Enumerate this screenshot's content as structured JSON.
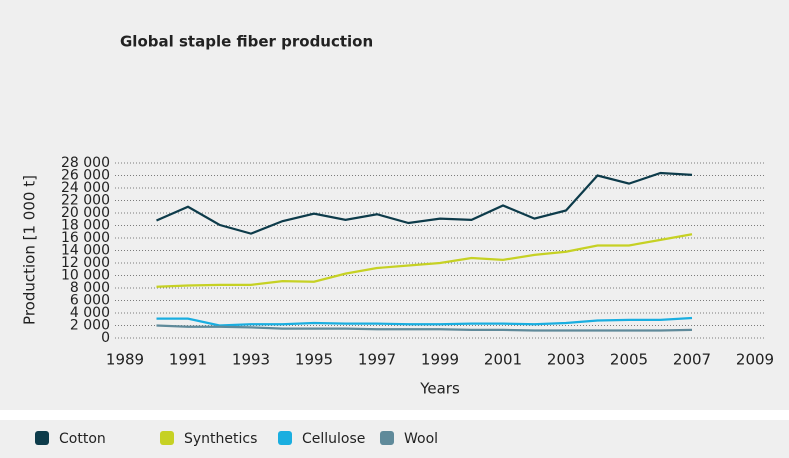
{
  "chart_data": {
    "type": "line",
    "title": "Global staple fiber production",
    "x_label": "Years",
    "y_label": "Production [1 000 t]",
    "x": [
      1990,
      1991,
      1992,
      1993,
      1994,
      1995,
      1996,
      1997,
      1998,
      1999,
      2000,
      2001,
      2002,
      2003,
      2004,
      2005,
      2006,
      2007
    ],
    "series": [
      {
        "name": "Cotton",
        "color": "#0d3b4a",
        "values": [
          18800,
          21000,
          18100,
          16700,
          18700,
          19900,
          18900,
          19800,
          18400,
          19100,
          18900,
          21200,
          19100,
          20400,
          26000,
          24700,
          26400,
          26100
        ]
      },
      {
        "name": "Synthetics",
        "color": "#c6d124",
        "values": [
          8200,
          8400,
          8500,
          8500,
          9100,
          9000,
          10300,
          11200,
          11600,
          12000,
          12800,
          12500,
          13300,
          13800,
          14800,
          14800,
          15700,
          16600
        ]
      },
      {
        "name": "Cellulose",
        "color": "#1aaee0",
        "values": [
          3100,
          3100,
          2000,
          2200,
          2200,
          2400,
          2300,
          2300,
          2200,
          2200,
          2300,
          2300,
          2200,
          2400,
          2800,
          2900,
          2900,
          3200
        ]
      },
      {
        "name": "Wool",
        "color": "#5f8a9a",
        "values": [
          2000,
          1800,
          1800,
          1700,
          1500,
          1500,
          1500,
          1400,
          1400,
          1400,
          1300,
          1300,
          1200,
          1200,
          1200,
          1200,
          1200,
          1300
        ]
      }
    ],
    "xlim": [
      1989,
      2009
    ],
    "xticks": [
      1989,
      1991,
      1993,
      1995,
      1997,
      1999,
      2001,
      2003,
      2005,
      2007,
      2009
    ],
    "ylim": [
      0,
      28000
    ],
    "yticks": [
      0,
      {
        "value": 2000,
        "label": "2 000"
      },
      {
        "value": 4000,
        "label": "4 000"
      },
      {
        "value": 6000,
        "label": "6 000"
      },
      {
        "value": 8000,
        "label": "8 000"
      },
      {
        "value": 10000,
        "label": "10 000"
      },
      {
        "value": 12000,
        "label": "12 000"
      },
      {
        "value": 14000,
        "label": "14 000"
      },
      {
        "value": 16000,
        "label": "16 000"
      },
      {
        "value": 18000,
        "label": "18 000"
      },
      {
        "value": 20000,
        "label": "20 000"
      },
      {
        "value": 22000,
        "label": "22 000"
      },
      {
        "value": 24000,
        "label": "24 000"
      },
      {
        "value": 26000,
        "label": "26 000"
      },
      {
        "value": 28000,
        "label": "28 000"
      }
    ],
    "grid": true
  }
}
